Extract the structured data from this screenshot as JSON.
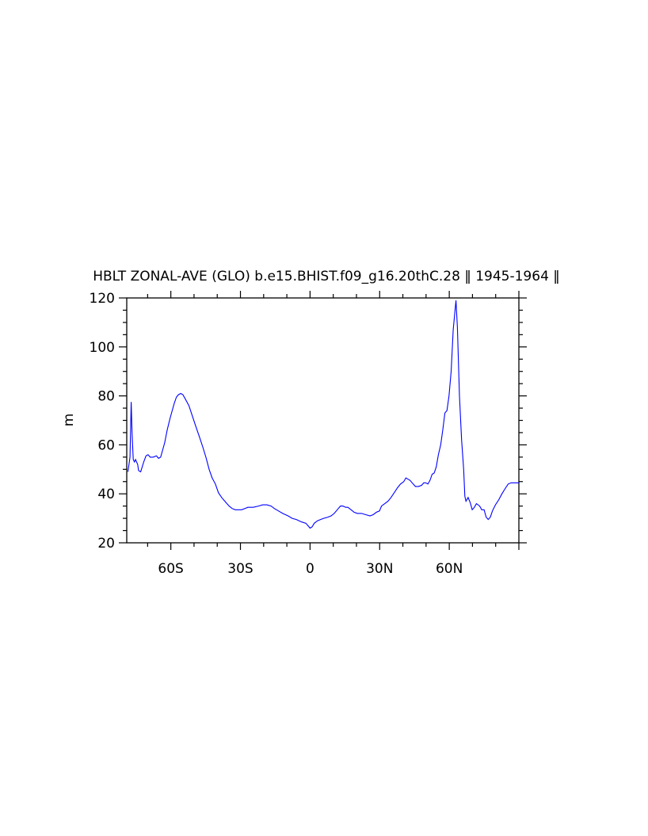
{
  "chart_data": {
    "type": "line",
    "title": "HBLT ZONAL-AVE (GLO) b.e15.BHIST.f09_g16.20thC.28 ‖ 1945-1964 ‖",
    "xlabel": "",
    "ylabel": "m",
    "xlim": [
      -79,
      90
    ],
    "ylim": [
      20,
      120
    ],
    "x_ticks": [
      {
        "value": -60,
        "label": "60S"
      },
      {
        "value": -30,
        "label": "30S"
      },
      {
        "value": 0,
        "label": "0"
      },
      {
        "value": 30,
        "label": "30N"
      },
      {
        "value": 60,
        "label": "60N"
      }
    ],
    "y_ticks": [
      {
        "value": 20,
        "label": "20"
      },
      {
        "value": 40,
        "label": "40"
      },
      {
        "value": 60,
        "label": "60"
      },
      {
        "value": 80,
        "label": "80"
      },
      {
        "value": 100,
        "label": "100"
      },
      {
        "value": 120,
        "label": "120"
      }
    ],
    "line_color": "#0000ff",
    "grid": false,
    "series": [
      {
        "values": [
          [
            -78.5,
            49
          ],
          [
            -77.6,
            55
          ],
          [
            -77.1,
            77.5
          ],
          [
            -76.7,
            65
          ],
          [
            -76.2,
            54
          ],
          [
            -75.7,
            53
          ],
          [
            -75.2,
            54
          ],
          [
            -74.3,
            52
          ],
          [
            -73.9,
            49.5
          ],
          [
            -73,
            49
          ],
          [
            -71.7,
            53
          ],
          [
            -70.7,
            55.5
          ],
          [
            -69.8,
            56
          ],
          [
            -68.9,
            55
          ],
          [
            -67.6,
            55
          ],
          [
            -66.2,
            55.5
          ],
          [
            -65.3,
            54.5
          ],
          [
            -64.4,
            55
          ],
          [
            -63.5,
            58
          ],
          [
            -62.6,
            61
          ],
          [
            -61.6,
            66
          ],
          [
            -60.3,
            71
          ],
          [
            -59.4,
            74
          ],
          [
            -58.5,
            77
          ],
          [
            -57.6,
            79.5
          ],
          [
            -56.7,
            80.5
          ],
          [
            -55.7,
            81
          ],
          [
            -54.8,
            80.5
          ],
          [
            -53.9,
            79
          ],
          [
            -52.2,
            76
          ],
          [
            -50.8,
            72
          ],
          [
            -49.4,
            68
          ],
          [
            -47.6,
            63
          ],
          [
            -46.2,
            59
          ],
          [
            -44.9,
            55
          ],
          [
            -43.5,
            50
          ],
          [
            -42.2,
            46.5
          ],
          [
            -40.8,
            44
          ],
          [
            -39.5,
            40.5
          ],
          [
            -38.1,
            38.5
          ],
          [
            -36.3,
            36.5
          ],
          [
            -34.9,
            35
          ],
          [
            -33.6,
            34
          ],
          [
            -32.2,
            33.5
          ],
          [
            -30.8,
            33.5
          ],
          [
            -29.5,
            33.5
          ],
          [
            -28.1,
            34
          ],
          [
            -26.8,
            34.5
          ],
          [
            -24.5,
            34.5
          ],
          [
            -22.2,
            35
          ],
          [
            -20.4,
            35.5
          ],
          [
            -18.6,
            35.5
          ],
          [
            -16.8,
            35
          ],
          [
            -15.4,
            34
          ],
          [
            -13.6,
            33
          ],
          [
            -11.8,
            32
          ],
          [
            -9.5,
            31
          ],
          [
            -7.7,
            30
          ],
          [
            -5.9,
            29.5
          ],
          [
            -3.6,
            28.5
          ],
          [
            -1.8,
            28
          ],
          [
            -0.9,
            27
          ],
          [
            0,
            26
          ],
          [
            0.9,
            26.5
          ],
          [
            1.8,
            28
          ],
          [
            3.2,
            29
          ],
          [
            4.5,
            29.5
          ],
          [
            5.9,
            30
          ],
          [
            7.7,
            30.5
          ],
          [
            9.1,
            31
          ],
          [
            10.4,
            32
          ],
          [
            11.3,
            33
          ],
          [
            12.2,
            34
          ],
          [
            13.1,
            35
          ],
          [
            14.1,
            35
          ],
          [
            15.4,
            34.5
          ],
          [
            16.3,
            34.5
          ],
          [
            17.7,
            33.5
          ],
          [
            19,
            32.5
          ],
          [
            20.4,
            32
          ],
          [
            22.2,
            32
          ],
          [
            24,
            31.5
          ],
          [
            25.8,
            31
          ],
          [
            27.2,
            31.5
          ],
          [
            28.6,
            32.5
          ],
          [
            29.9,
            33
          ],
          [
            30.8,
            35
          ],
          [
            32.2,
            36
          ],
          [
            33.6,
            37
          ],
          [
            34.9,
            38.5
          ],
          [
            36.3,
            40.5
          ],
          [
            37.7,
            42.5
          ],
          [
            39,
            44
          ],
          [
            40.4,
            45
          ],
          [
            41.3,
            46.5
          ],
          [
            42.2,
            46
          ],
          [
            43.1,
            45.5
          ],
          [
            44,
            44.5
          ],
          [
            45.4,
            43
          ],
          [
            46.7,
            43
          ],
          [
            48.1,
            43.5
          ],
          [
            49,
            44.5
          ],
          [
            49.9,
            44.5
          ],
          [
            50.8,
            44
          ],
          [
            51.7,
            45.5
          ],
          [
            52.6,
            48
          ],
          [
            53.5,
            48.5
          ],
          [
            54.4,
            51
          ],
          [
            55.3,
            56
          ],
          [
            56.3,
            60
          ],
          [
            57.2,
            66
          ],
          [
            58.1,
            73
          ],
          [
            59,
            74
          ],
          [
            59.9,
            80
          ],
          [
            60.8,
            90
          ],
          [
            61.7,
            107
          ],
          [
            62.6,
            116
          ],
          [
            62.9,
            119
          ],
          [
            63.5,
            108
          ],
          [
            64.4,
            80
          ],
          [
            65.3,
            62
          ],
          [
            66.2,
            50
          ],
          [
            66.7,
            39
          ],
          [
            67.2,
            37
          ],
          [
            68.1,
            38.5
          ],
          [
            69,
            36.5
          ],
          [
            69.9,
            33.5
          ],
          [
            70.8,
            34.5
          ],
          [
            71.7,
            36
          ],
          [
            73.1,
            35
          ],
          [
            74,
            33.5
          ],
          [
            75,
            33.5
          ],
          [
            75.9,
            30.5
          ],
          [
            76.8,
            29.5
          ],
          [
            77.7,
            30.5
          ],
          [
            78.6,
            33
          ],
          [
            79.9,
            35.5
          ],
          [
            81.3,
            37.5
          ],
          [
            82.7,
            40
          ],
          [
            84,
            42
          ],
          [
            85.4,
            44
          ],
          [
            86.7,
            44.5
          ],
          [
            88.1,
            44.5
          ],
          [
            90,
            44.5
          ]
        ]
      }
    ]
  }
}
